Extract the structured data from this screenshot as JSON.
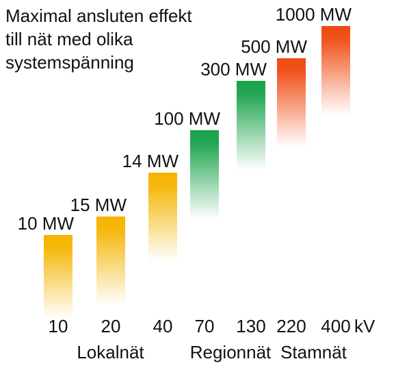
{
  "chart_data": {
    "type": "bar",
    "title_lines": [
      "Maximal ansluten effekt",
      "till nät med olika",
      "systemspänning"
    ],
    "categories": [
      "10",
      "20",
      "40",
      "70",
      "130",
      "220",
      "400"
    ],
    "values": [
      10,
      15,
      14,
      100,
      300,
      500,
      1000
    ],
    "value_labels": [
      "10 MW",
      "15 MW",
      "14 MW",
      "100 MW",
      "300 MW",
      "500 MW",
      "1000 MW"
    ],
    "unit": "kV",
    "groups": [
      {
        "label": "Lokalnät",
        "members": [
          "10",
          "20",
          "40"
        ],
        "color": "#f5b400"
      },
      {
        "label": "Regionnät",
        "members": [
          "70",
          "130"
        ],
        "color": "#1aa24a"
      },
      {
        "label": "Stamnät",
        "members": [
          "220",
          "400"
        ],
        "color": "#f04a10"
      }
    ]
  }
}
